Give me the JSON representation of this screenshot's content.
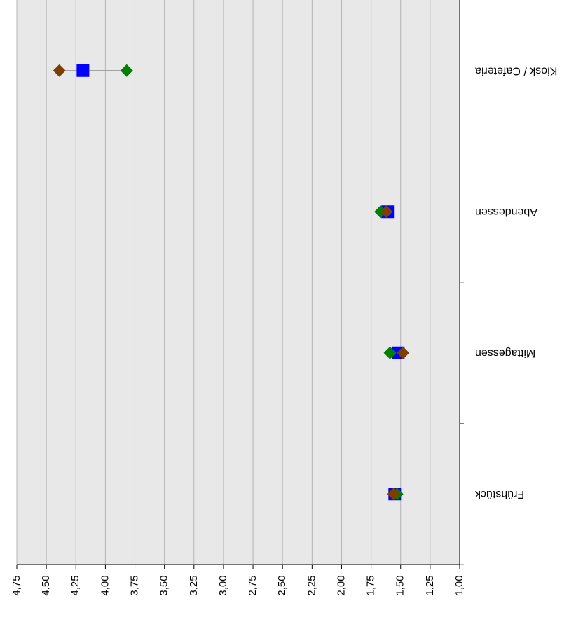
{
  "chart_data": {
    "type": "scatter",
    "orientation": "rotated-180",
    "categories": [
      "Frühstück",
      "Mittagessen",
      "Abendessen",
      "Kiosk / Cafeteria"
    ],
    "value_axis": {
      "min": 1.0,
      "max": 4.75,
      "step": 0.25,
      "tick_labels": [
        "1,00",
        "1,25",
        "1,50",
        "1,75",
        "2,00",
        "2,25",
        "2,50",
        "2,75",
        "3,00",
        "3,25",
        "3,50",
        "3,75",
        "4,00",
        "4,25",
        "4,50",
        "4,75"
      ]
    },
    "grid": true,
    "series": [
      {
        "marker": "square",
        "color": "#0000ff",
        "values": [
          1.55,
          1.52,
          1.61,
          4.19
        ]
      },
      {
        "marker": "diamond",
        "color": "#008000",
        "values": [
          1.53,
          1.59,
          1.67,
          3.82
        ]
      },
      {
        "marker": "diamond",
        "color": "#7b3f00",
        "values": [
          1.56,
          1.48,
          1.62,
          4.39
        ]
      }
    ],
    "range_line": {
      "color": "#8c8c8c"
    },
    "colors": {
      "plot_background": "#e8e8e8",
      "gridline": "#b4b4b4",
      "axis": "#000000"
    }
  }
}
